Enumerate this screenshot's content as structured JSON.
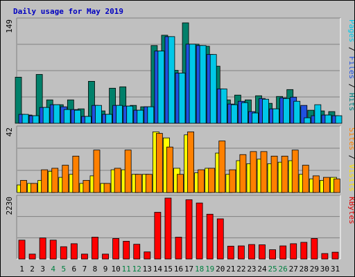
{
  "chart_data": {
    "type": "bar",
    "title": "Daily usage for May 2019",
    "categories": [
      "1",
      "2",
      "3",
      "4",
      "5",
      "6",
      "7",
      "8",
      "9",
      "10",
      "11",
      "12",
      "13",
      "14",
      "15",
      "16",
      "17",
      "18",
      "19",
      "20",
      "21",
      "22",
      "23",
      "24",
      "25",
      "26",
      "27",
      "28",
      "29",
      "30",
      "31"
    ],
    "weekend_days": [
      "4",
      "5",
      "11",
      "12",
      "18",
      "19",
      "25",
      "26"
    ],
    "panels": [
      {
        "axis_max_label": "149",
        "ymax": 149,
        "right_label": [
          {
            "text": "Pages",
            "color": "#00c8e8"
          },
          {
            "text": " / ",
            "color": "#000000"
          },
          {
            "text": "Files",
            "color": "#2050e0"
          },
          {
            "text": " / ",
            "color": "#000000"
          },
          {
            "text": "Hits",
            "color": "#008080"
          }
        ],
        "series": [
          {
            "name": "Hits",
            "color": "#00806a",
            "values": [
              67,
              12,
              71,
              34,
              27,
              34,
              21,
              61,
              18,
              51,
              53,
              26,
              24,
              113,
              128,
              77,
              146,
              115,
              112,
              83,
              34,
              41,
              34,
              40,
              29,
              39,
              49,
              23,
              19,
              18,
              17
            ]
          },
          {
            "name": "Files",
            "color": "#2050e0",
            "values": [
              13,
              11,
              23,
              27,
              24,
              20,
              10,
              26,
              13,
              26,
              25,
              19,
              24,
              105,
              126,
              73,
              115,
              113,
              100,
              50,
              28,
              32,
              17,
              36,
              21,
              37,
              38,
              26,
              11,
              12,
              11
            ]
          },
          {
            "name": "Pages",
            "color": "#00c8e8",
            "values": [
              13,
              11,
              23,
              27,
              20,
              19,
              10,
              26,
              13,
              26,
              25,
              19,
              24,
              105,
              126,
              73,
              115,
              113,
              100,
              50,
              27,
              30,
              15,
              35,
              21,
              36,
              32,
              8,
              27,
              12,
              11
            ]
          }
        ]
      },
      {
        "axis_max_label": "42",
        "ymax": 42,
        "right_label": [
          {
            "text": "Sites",
            "color": "#ff8000"
          },
          {
            "text": " / ",
            "color": "#000000"
          },
          {
            "text": "Visits",
            "color": "#ffe000"
          }
        ],
        "series": [
          {
            "name": "Visits",
            "color": "#ffff00",
            "values": [
              5,
              6,
              8,
              14,
              10,
              12,
              6,
              11,
              6,
              15,
              15,
              12,
              12,
              40,
              36,
              16,
              38,
              13,
              16,
              26,
              12,
              21,
              19,
              22,
              19,
              20,
              21,
              12,
              9,
              8,
              10
            ]
          },
          {
            "name": "Sites",
            "color": "#ff8000",
            "values": [
              8,
              6,
              15,
              16,
              18,
              24,
              8,
              28,
              6,
              16,
              28,
              12,
              12,
              39,
              30,
              12,
              40,
              15,
              16,
              34,
              15,
              25,
              27,
              27,
              24,
              24,
              28,
              18,
              11,
              10,
              9
            ]
          }
        ]
      },
      {
        "axis_max_label": "2230",
        "ymax": 2230,
        "right_label": [
          {
            "text": "KBytes",
            "color": "#e00000"
          }
        ],
        "series": [
          {
            "name": "KBytes",
            "color": "#ff0000",
            "values": [
              690,
              180,
              770,
              690,
              450,
              560,
              180,
              800,
              180,
              750,
              650,
              540,
              260,
              1710,
              2230,
              800,
              2170,
              2050,
              1640,
              1470,
              470,
              480,
              530,
              520,
              340,
              480,
              560,
              610,
              750,
              200,
              250
            ]
          }
        ]
      }
    ]
  }
}
